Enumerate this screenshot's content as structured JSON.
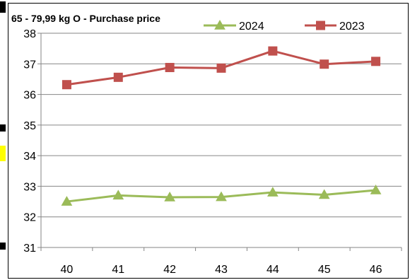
{
  "chart_data": {
    "type": "line",
    "title": "65 - 79,99 kg O - Purchase price",
    "x": [
      "40",
      "41",
      "42",
      "43",
      "44",
      "45",
      "46"
    ],
    "ylim": [
      31,
      38
    ],
    "yticks": [
      "31",
      "32",
      "33",
      "34",
      "35",
      "36",
      "37",
      "38"
    ],
    "grid": true,
    "legend_position": "top-right",
    "series": [
      {
        "name": "2024",
        "values": [
          32.5,
          32.7,
          32.64,
          32.65,
          32.8,
          32.72,
          32.87
        ],
        "color": "#9BBB59",
        "marker": "triangle"
      },
      {
        "name": "2023",
        "values": [
          36.32,
          36.56,
          36.88,
          36.86,
          37.42,
          36.99,
          37.08
        ],
        "color": "#C0504D",
        "marker": "square"
      }
    ]
  }
}
